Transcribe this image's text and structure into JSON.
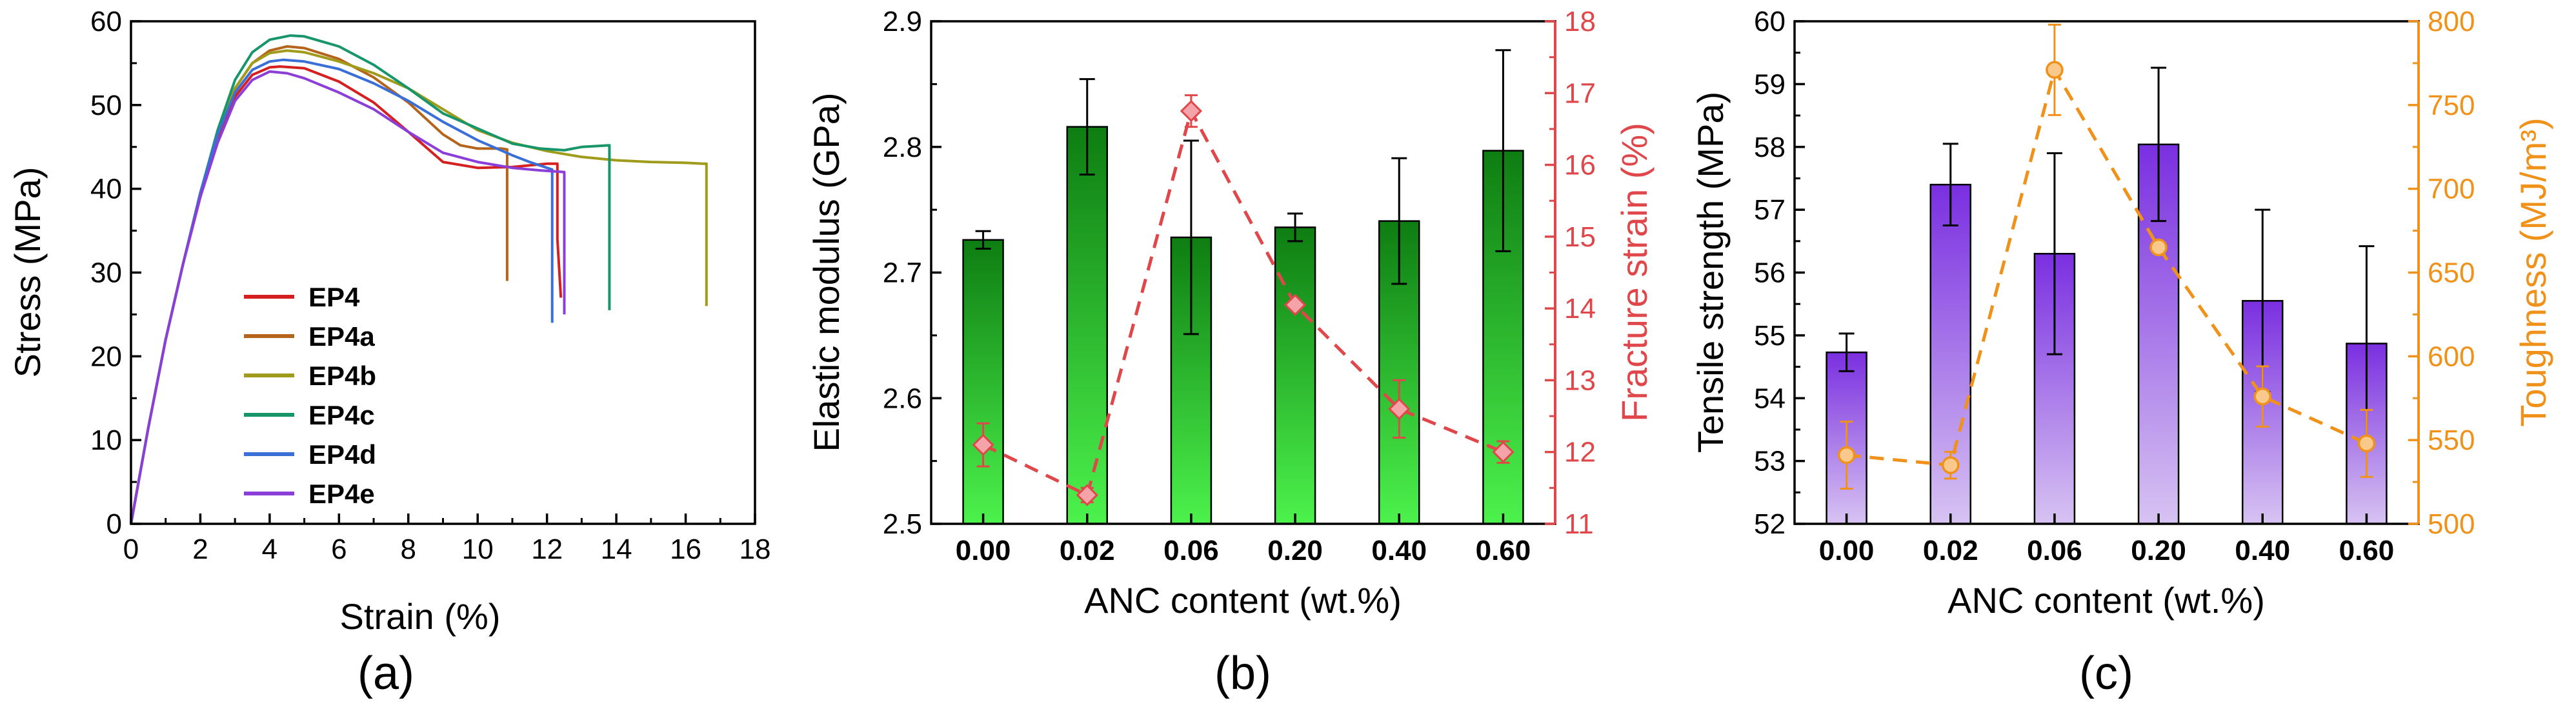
{
  "chart_data": [
    {
      "type": "line",
      "panel_label": "(a)",
      "title": "",
      "xlabel": "Strain (%)",
      "ylabel": "Stress (MPa)",
      "xlim": [
        0,
        18
      ],
      "ylim": [
        0,
        60
      ],
      "xticks": [
        0,
        2,
        4,
        6,
        8,
        10,
        12,
        14,
        16,
        18
      ],
      "yticks": [
        0,
        10,
        20,
        30,
        40,
        50,
        60
      ],
      "legend": "lower-left",
      "series": [
        {
          "name": "EP4",
          "color": "#d42020",
          "x": [
            0,
            0.5,
            1,
            1.5,
            2,
            2.5,
            3,
            3.5,
            4,
            4.3,
            5,
            6,
            7,
            8,
            9,
            10,
            11,
            12,
            12.3,
            12.3,
            12.4
          ],
          "y": [
            0,
            11.5,
            22,
            31,
            39,
            46,
            51,
            53.6,
            54.5,
            54.6,
            54.4,
            52.8,
            50.3,
            46.8,
            43.2,
            42.5,
            42.6,
            43,
            43,
            34,
            27
          ]
        },
        {
          "name": "EP4a",
          "color": "#b4651b",
          "x": [
            0,
            0.5,
            1,
            1.5,
            2,
            2.5,
            3,
            3.5,
            4,
            4.5,
            5,
            6,
            7,
            8,
            9,
            9.5,
            10,
            10.7,
            10.85,
            10.85
          ],
          "y": [
            0,
            11.5,
            22,
            31,
            39.5,
            46.5,
            52,
            55,
            56.5,
            57,
            56.8,
            55.5,
            53.3,
            50.3,
            46.5,
            45.2,
            44.8,
            44.8,
            44.7,
            29
          ]
        },
        {
          "name": "EP4b",
          "color": "#a09b1a",
          "x": [
            0,
            0.5,
            1,
            1.5,
            2,
            2.5,
            3,
            3.5,
            4,
            4.5,
            5,
            6,
            7,
            8,
            9,
            10,
            11,
            12,
            13,
            14,
            15,
            16,
            16.5,
            16.6,
            16.6
          ],
          "y": [
            0,
            11.5,
            22,
            31,
            39.5,
            46.5,
            52,
            55,
            56.2,
            56.5,
            56.3,
            55.2,
            53.8,
            52,
            49.5,
            47,
            45.5,
            44.5,
            43.8,
            43.4,
            43.2,
            43.1,
            43,
            43,
            26
          ]
        },
        {
          "name": "EP4c",
          "color": "#179669",
          "x": [
            0,
            0.5,
            1,
            1.5,
            2,
            2.5,
            3,
            3.5,
            4,
            4.6,
            5,
            6,
            7,
            8,
            9,
            10,
            11,
            11.8,
            12.5,
            13,
            13.8,
            13.8
          ],
          "y": [
            0,
            11.5,
            22,
            31,
            39.5,
            47,
            53,
            56.3,
            57.8,
            58.3,
            58.2,
            57,
            54.8,
            52,
            49,
            47.2,
            45.4,
            44.8,
            44.6,
            45,
            45.2,
            25.5
          ]
        },
        {
          "name": "EP4d",
          "color": "#3a6fd8",
          "x": [
            0,
            0.5,
            1,
            1.5,
            2,
            2.5,
            3,
            3.5,
            4,
            4.4,
            5,
            6,
            7,
            8,
            9,
            10,
            11,
            11.5,
            12,
            12.15,
            12.15
          ],
          "y": [
            0,
            11.5,
            22,
            31,
            39.5,
            46.5,
            51.5,
            54.2,
            55.2,
            55.4,
            55.2,
            54.3,
            52.6,
            50.5,
            48,
            45.8,
            44,
            43.2,
            42.5,
            42.3,
            24
          ]
        },
        {
          "name": "EP4e",
          "color": "#8b3fd8",
          "x": [
            0,
            0.5,
            1,
            1.5,
            2,
            2.5,
            3,
            3.5,
            4,
            4.5,
            5,
            6,
            7,
            8,
            9,
            10,
            11,
            11.8,
            12.5,
            12.5
          ],
          "y": [
            0,
            11.5,
            22,
            31,
            39,
            45.5,
            50.5,
            53,
            54,
            53.8,
            53.2,
            51.5,
            49.5,
            46.8,
            44.3,
            43.2,
            42.5,
            42.2,
            42,
            25
          ]
        }
      ]
    },
    {
      "type": "bar",
      "panel_label": "(b)",
      "title": "",
      "xlabel": "ANC content (wt.%)",
      "ylabel": "Elastic modulus (GPa)",
      "y2label": "Fracture strain (%)",
      "categories": [
        "0.00",
        "0.02",
        "0.06",
        "0.20",
        "0.40",
        "0.60"
      ],
      "ylim": [
        2.5,
        2.9
      ],
      "yticks": [
        "2.5",
        "2.6",
        "2.7",
        "2.8",
        "2.9"
      ],
      "y2lim": [
        11,
        18
      ],
      "y2ticks": [
        "11",
        "12",
        "13",
        "14",
        "15",
        "16",
        "17",
        "18"
      ],
      "bar_color_top": "#0e7d12",
      "bar_color_bottom": "#4cf24c",
      "axis2_color": "#e0474a",
      "series": [
        {
          "name": "Elastic modulus",
          "axis": "left",
          "kind": "bar",
          "values": [
            2.726,
            2.816,
            2.728,
            2.736,
            2.741,
            2.797
          ],
          "errors": [
            0.007,
            0.038,
            0.077,
            0.011,
            0.05,
            0.08
          ]
        },
        {
          "name": "Fracture strain",
          "axis": "right",
          "kind": "line",
          "color": "#e0474a",
          "values": [
            12.1,
            11.4,
            16.75,
            14.05,
            12.6,
            12.0
          ],
          "errors": [
            0.3,
            0.1,
            0.22,
            0.0,
            0.4,
            0.15
          ]
        }
      ]
    },
    {
      "type": "bar",
      "panel_label": "(c)",
      "title": "",
      "xlabel": "ANC content (wt.%)",
      "ylabel": "Tensile strength (MPa)",
      "y2label": "Toughness (MJ/m³)",
      "categories": [
        "0.00",
        "0.02",
        "0.06",
        "0.20",
        "0.40",
        "0.60"
      ],
      "ylim": [
        52,
        60
      ],
      "yticks": [
        "52",
        "53",
        "54",
        "55",
        "56",
        "57",
        "58",
        "59",
        "60"
      ],
      "y2lim": [
        500,
        800
      ],
      "y2ticks": [
        "500",
        "550",
        "600",
        "650",
        "700",
        "750",
        "800"
      ],
      "bar_color_top": "#7a2fe0",
      "bar_color_bottom": "#d7c3f2",
      "axis2_color": "#f0921a",
      "series": [
        {
          "name": "Tensile strength",
          "axis": "left",
          "kind": "bar",
          "values": [
            54.73,
            57.4,
            56.3,
            58.04,
            55.55,
            54.87
          ],
          "errors": [
            0.3,
            0.65,
            1.6,
            1.22,
            1.45,
            1.55
          ]
        },
        {
          "name": "Toughness",
          "axis": "right",
          "kind": "line",
          "color": "#f0921a",
          "values": [
            541,
            535,
            771,
            665,
            576,
            548
          ],
          "errors": [
            20,
            8,
            27,
            0,
            18,
            20
          ]
        }
      ]
    }
  ]
}
